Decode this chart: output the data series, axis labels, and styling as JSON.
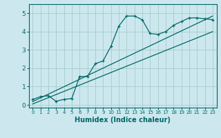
{
  "xlabel": "Humidex (Indice chaleur)",
  "bg_color": "#cce8ee",
  "grid_color": "#aacfcf",
  "line_color": "#006666",
  "xlim": [
    -0.5,
    23.5
  ],
  "ylim": [
    -0.15,
    5.5
  ],
  "xticks": [
    0,
    1,
    2,
    3,
    4,
    5,
    6,
    7,
    8,
    9,
    10,
    11,
    12,
    13,
    14,
    15,
    16,
    17,
    18,
    19,
    20,
    21,
    22,
    23
  ],
  "yticks": [
    0,
    1,
    2,
    3,
    4,
    5
  ],
  "curve_x": [
    0,
    1,
    2,
    3,
    4,
    5,
    6,
    7,
    8,
    9,
    10,
    11,
    12,
    13,
    14,
    15,
    16,
    17,
    18,
    19,
    20,
    21,
    22,
    23
  ],
  "curve_y": [
    0.3,
    0.45,
    0.5,
    0.2,
    0.3,
    0.35,
    1.55,
    1.55,
    2.25,
    2.4,
    3.2,
    4.3,
    4.85,
    4.85,
    4.65,
    3.9,
    3.85,
    4.0,
    4.35,
    4.55,
    4.75,
    4.75,
    4.7,
    4.65
  ],
  "line1_x": [
    0,
    23
  ],
  "line1_y": [
    0.18,
    4.85
  ],
  "line2_x": [
    0,
    23
  ],
  "line2_y": [
    0.05,
    4.0
  ]
}
